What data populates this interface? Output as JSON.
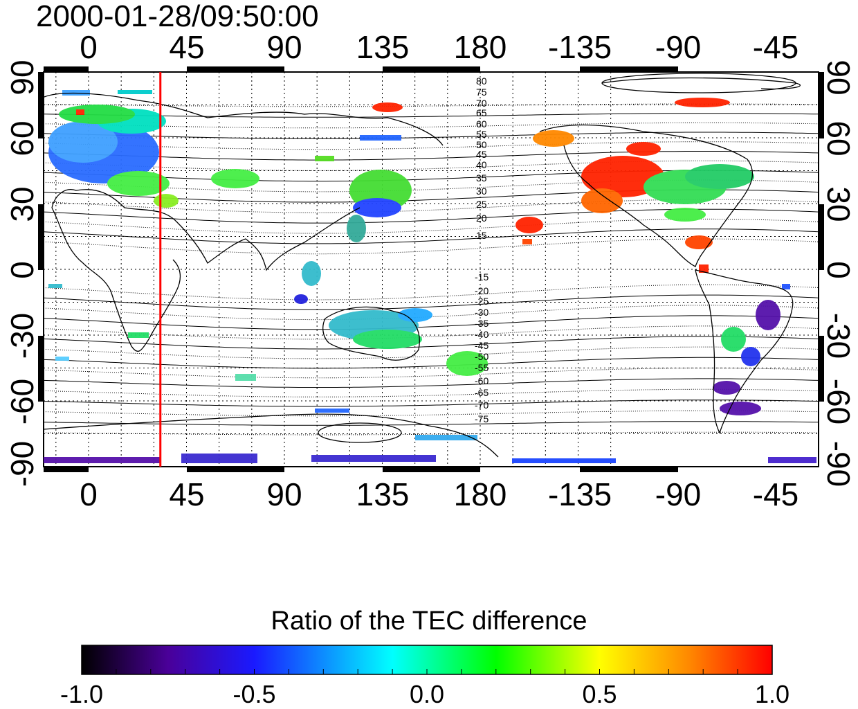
{
  "title": "2000-01-28/09:50:00",
  "lon_ticks": [
    "0",
    "45",
    "90",
    "135",
    "180",
    "-135",
    "-90",
    "-45"
  ],
  "lat_ticks": [
    "90",
    "60",
    "30",
    "0",
    "-30",
    "-60",
    "-90"
  ],
  "mlat_north": [
    "80",
    "75",
    "70",
    "65",
    "60",
    "55",
    "50",
    "45",
    "40",
    "35",
    "30",
    "25",
    "20",
    "15"
  ],
  "mlat_south": [
    "-15",
    "-20",
    "-25",
    "-30",
    "-35",
    "-40",
    "-45",
    "-50",
    "-55",
    "-60",
    "-65",
    "-70",
    "-75"
  ],
  "terminator_lon": 33,
  "colorbar": {
    "title": "Ratio of the TEC difference",
    "min": -1.0,
    "max": 1.0,
    "ticks": [
      "-1.0",
      "-0.5",
      "0.0",
      "0.5",
      "1.0"
    ],
    "colormap": [
      "#000000",
      "#4a0099",
      "#1a1aff",
      "#00ffff",
      "#00ff00",
      "#ffff00",
      "#ff8800",
      "#ff0000"
    ]
  },
  "colors": {
    "terminator": "#ff0000",
    "coast": "#000000",
    "grid": "#000000"
  }
}
